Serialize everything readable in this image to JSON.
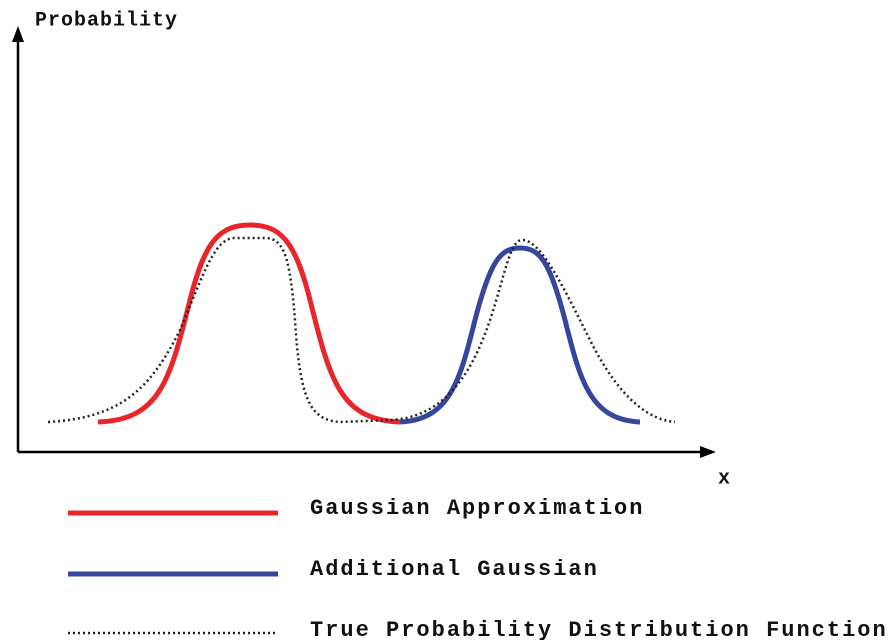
{
  "diagram": {
    "y_axis_label": "Probability",
    "x_axis_label": "x",
    "legend": [
      {
        "label": "Gaussian Approximation"
      },
      {
        "label": "Additional Gaussian"
      },
      {
        "label": "True Probability Distribution Function"
      }
    ]
  }
}
